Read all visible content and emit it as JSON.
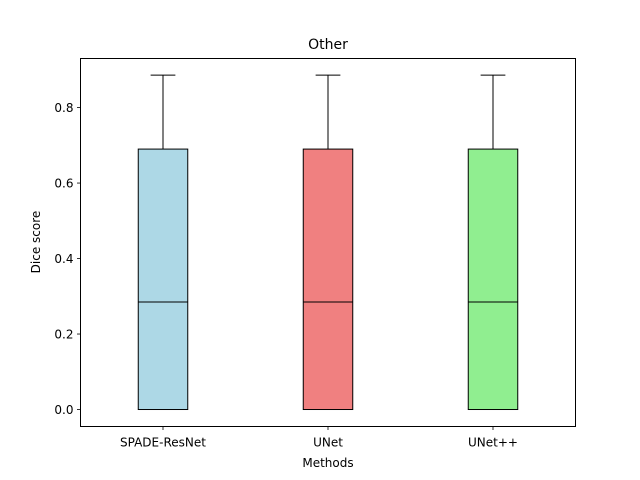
{
  "chart_data": {
    "type": "boxplot",
    "title": "Other",
    "xlabel": "Methods",
    "ylabel": "Dice score",
    "ylim": [
      -0.045,
      0.93
    ],
    "yticks": [
      0.0,
      0.2,
      0.4,
      0.6,
      0.8
    ],
    "ytick_labels": [
      "0.0",
      "0.2",
      "0.4",
      "0.6",
      "0.8"
    ],
    "categories": [
      "SPADE-ResNet",
      "UNet",
      "UNet++"
    ],
    "boxes": [
      {
        "name": "SPADE-ResNet",
        "whisker_low": 0.0,
        "q1": 0.0,
        "median": 0.285,
        "q3": 0.69,
        "whisker_high": 0.886,
        "color": "#add8e6"
      },
      {
        "name": "UNet",
        "whisker_low": 0.0,
        "q1": 0.0,
        "median": 0.285,
        "q3": 0.69,
        "whisker_high": 0.886,
        "color": "#f08080"
      },
      {
        "name": "UNet++",
        "whisker_low": 0.0,
        "q1": 0.0,
        "median": 0.285,
        "q3": 0.69,
        "whisker_high": 0.886,
        "color": "#90ee90"
      }
    ],
    "grid": false,
    "legend": "none"
  }
}
